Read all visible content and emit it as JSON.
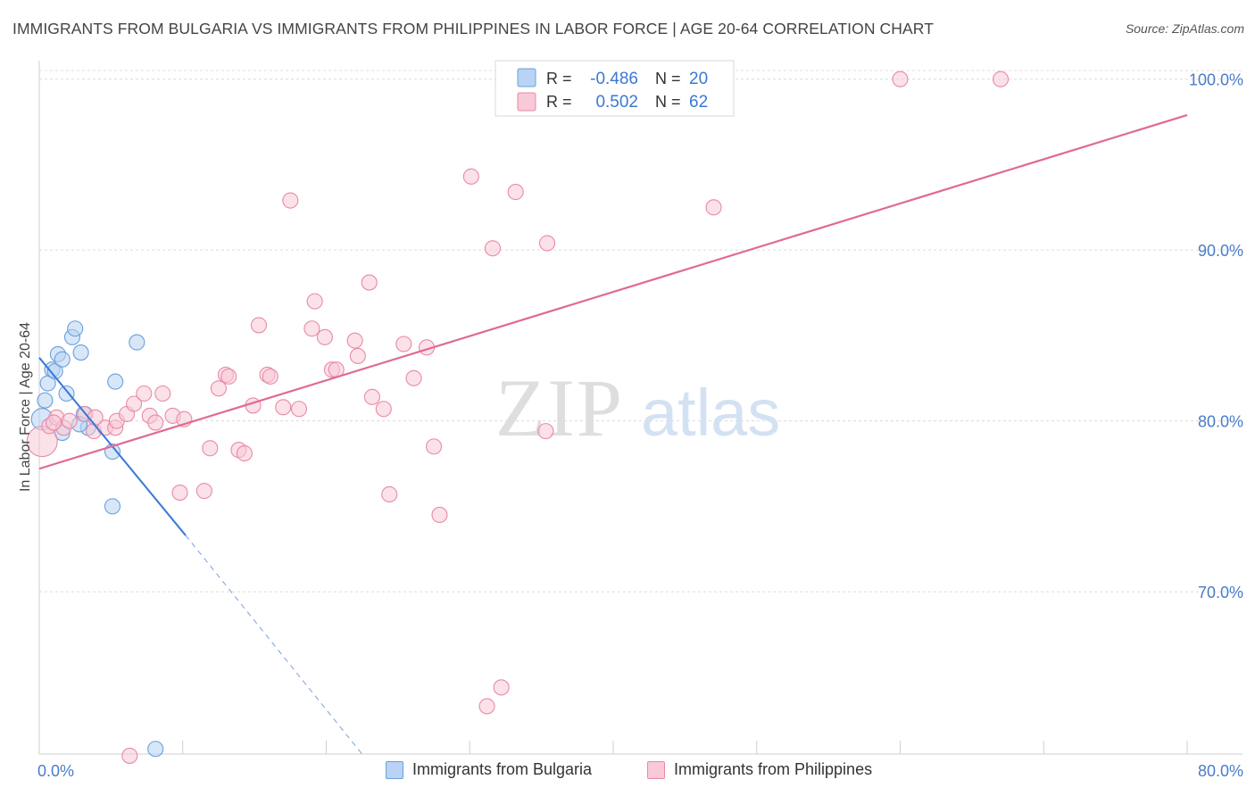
{
  "header": {
    "title": "IMMIGRANTS FROM BULGARIA VS IMMIGRANTS FROM PHILIPPINES IN LABOR FORCE | AGE 20-64 CORRELATION CHART",
    "source": "Source: ZipAtlas.com"
  },
  "watermark": {
    "zip": "ZIP",
    "atlas": "atlas"
  },
  "colors": {
    "bulgaria_fill": "#b8d3f3",
    "bulgaria_stroke": "#6a9fdc",
    "bulgaria_line": "#3a78d6",
    "philippines_fill": "#f8c9d6",
    "philippines_stroke": "#e88aa6",
    "philippines_line": "#e06a93",
    "tick_label": "#4a7cc8",
    "grid": "#dcdcdc"
  },
  "legend_top": {
    "rows": [
      {
        "r_label": "R =",
        "r_value": "-0.486",
        "n_label": "N =",
        "n_value": "20"
      },
      {
        "r_label": "R =",
        "r_value": "0.502",
        "n_label": "N =",
        "n_value": "62"
      }
    ]
  },
  "chart_data": {
    "type": "scatter",
    "title": "IMMIGRANTS FROM BULGARIA VS IMMIGRANTS FROM PHILIPPINES IN LABOR FORCE | AGE 20-64 CORRELATION CHART",
    "xlabel": "",
    "ylabel": "In Labor Force | Age 20-64",
    "xlim": [
      0,
      80
    ],
    "ylim": [
      60.5,
      101.5
    ],
    "x_tick_labels": [
      "0.0%",
      "80.0%"
    ],
    "y_ticks": [
      70,
      80,
      90,
      100
    ],
    "y_tick_labels": [
      "70.0%",
      "80.0%",
      "90.0%",
      "100.0%"
    ],
    "grid": true,
    "legend_position": "bottom",
    "series": [
      {
        "name": "Immigrants from Bulgaria",
        "r": -0.486,
        "n": 20,
        "points": [
          [
            0.2,
            80.1
          ],
          [
            0.4,
            81.2
          ],
          [
            0.6,
            82.2
          ],
          [
            0.9,
            83.0
          ],
          [
            1.1,
            82.9
          ],
          [
            1.3,
            83.9
          ],
          [
            1.6,
            83.6
          ],
          [
            1.9,
            81.6
          ],
          [
            2.3,
            84.9
          ],
          [
            2.5,
            85.4
          ],
          [
            2.9,
            84.0
          ],
          [
            3.1,
            80.4
          ],
          [
            3.4,
            79.6
          ],
          [
            2.8,
            79.8
          ],
          [
            1.6,
            79.3
          ],
          [
            5.3,
            82.3
          ],
          [
            6.8,
            84.6
          ],
          [
            5.1,
            78.2
          ],
          [
            5.1,
            75.0
          ],
          [
            8.1,
            60.8
          ]
        ],
        "trend": {
          "x": [
            0,
            10.2
          ],
          "y": [
            83.7,
            73.3
          ]
        },
        "trend_extension": {
          "x": [
            10.2,
            22.5
          ],
          "y": [
            73.3,
            60.5
          ]
        }
      },
      {
        "name": "Immigrants from Philippines",
        "r": 0.502,
        "n": 62,
        "points": [
          [
            0.2,
            78.8
          ],
          [
            0.7,
            79.7
          ],
          [
            1.2,
            80.2
          ],
          [
            1.7,
            79.6
          ],
          [
            2.1,
            80.0
          ],
          [
            3.2,
            80.4
          ],
          [
            3.8,
            79.4
          ],
          [
            4.6,
            79.6
          ],
          [
            5.3,
            79.6
          ],
          [
            5.4,
            80.0
          ],
          [
            6.1,
            80.4
          ],
          [
            6.6,
            81.0
          ],
          [
            7.3,
            81.6
          ],
          [
            7.7,
            80.3
          ],
          [
            8.1,
            79.9
          ],
          [
            8.6,
            81.6
          ],
          [
            9.3,
            80.3
          ],
          [
            10.1,
            80.1
          ],
          [
            9.8,
            75.8
          ],
          [
            11.5,
            75.9
          ],
          [
            11.9,
            78.4
          ],
          [
            12.5,
            81.9
          ],
          [
            13.0,
            82.7
          ],
          [
            13.2,
            82.6
          ],
          [
            13.9,
            78.3
          ],
          [
            14.3,
            78.1
          ],
          [
            14.9,
            80.9
          ],
          [
            15.3,
            85.6
          ],
          [
            15.9,
            82.7
          ],
          [
            16.1,
            82.6
          ],
          [
            17.0,
            80.8
          ],
          [
            17.5,
            92.9
          ],
          [
            18.1,
            80.7
          ],
          [
            19.2,
            87.0
          ],
          [
            19.0,
            85.4
          ],
          [
            19.9,
            84.9
          ],
          [
            20.4,
            83.0
          ],
          [
            20.7,
            83.0
          ],
          [
            22.0,
            84.7
          ],
          [
            22.2,
            83.8
          ],
          [
            23.0,
            88.1
          ],
          [
            23.2,
            81.4
          ],
          [
            24.0,
            80.7
          ],
          [
            24.4,
            75.7
          ],
          [
            25.4,
            84.5
          ],
          [
            26.1,
            82.5
          ],
          [
            27.0,
            84.3
          ],
          [
            27.5,
            78.5
          ],
          [
            27.9,
            74.5
          ],
          [
            30.1,
            94.3
          ],
          [
            31.6,
            90.1
          ],
          [
            31.2,
            63.3
          ],
          [
            32.2,
            64.4
          ],
          [
            33.2,
            93.4
          ],
          [
            35.3,
            79.4
          ],
          [
            35.4,
            90.4
          ],
          [
            47.0,
            92.5
          ],
          [
            60.0,
            100.0
          ],
          [
            67.0,
            100.0
          ],
          [
            3.9,
            80.2
          ],
          [
            1.0,
            79.9
          ],
          [
            6.3,
            60.4
          ]
        ],
        "trend": {
          "x": [
            0,
            80
          ],
          "y": [
            77.2,
            97.9
          ]
        }
      }
    ]
  },
  "legend_bottom": {
    "items": [
      {
        "label": "Immigrants from Bulgaria"
      },
      {
        "label": "Immigrants from Philippines"
      }
    ]
  }
}
